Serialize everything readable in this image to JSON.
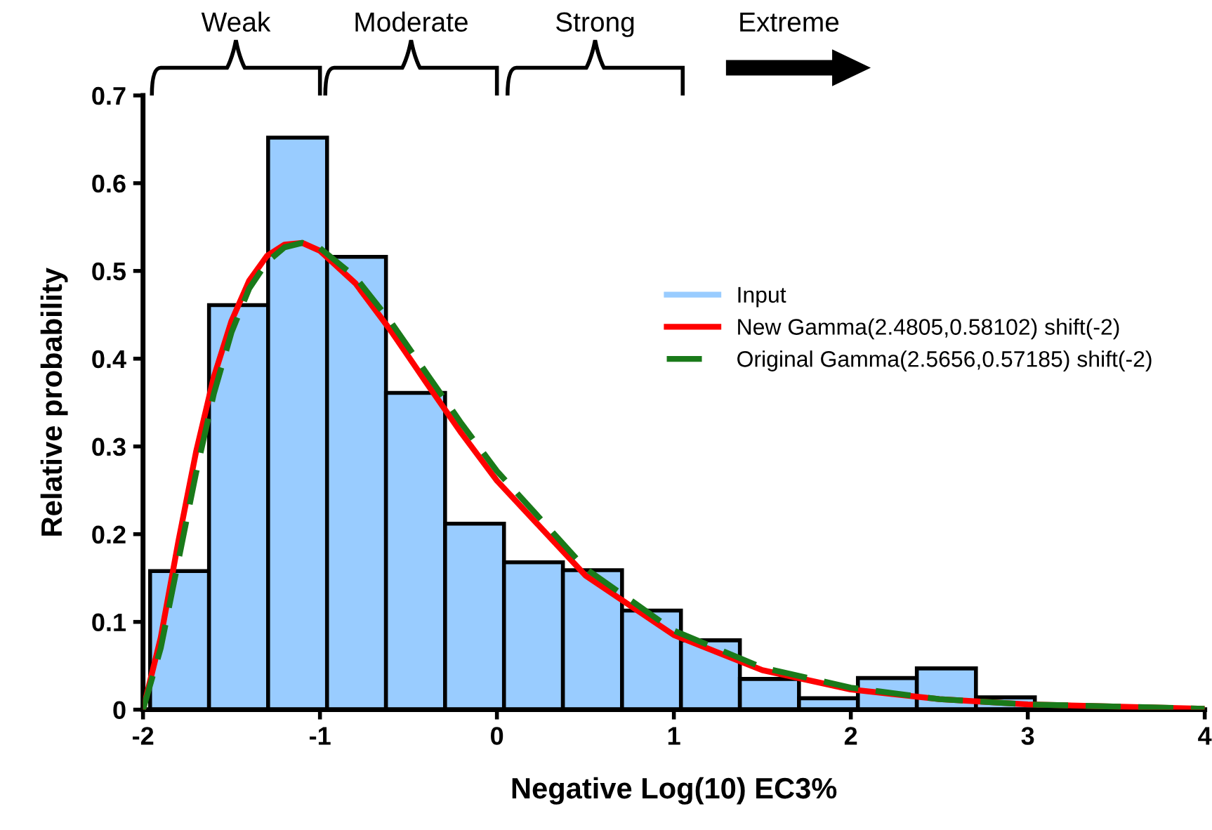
{
  "chart_data": {
    "type": "histogram",
    "xlabel": "Negative Log(10) EC3%",
    "ylabel": "Relative probability",
    "xlim": [
      -2,
      4
    ],
    "xticks": [
      -2,
      -1,
      0,
      1,
      2,
      3,
      4
    ],
    "ylim": [
      0,
      0.7
    ],
    "yticks": [
      0,
      0.1,
      0.2,
      0.3,
      0.4,
      0.5,
      0.6,
      0.7
    ],
    "grid": false,
    "legend": "right",
    "annotations": [
      "Weak",
      "Moderate",
      "Strong",
      "Extreme"
    ],
    "series": [
      {
        "name": "Input",
        "color": "#99ccff",
        "bins": [
          -1.96,
          -1.627,
          -1.293,
          -0.96,
          -0.627,
          -0.293,
          0.04,
          0.373,
          0.707,
          1.04,
          1.373,
          1.707,
          2.04,
          2.373,
          2.707,
          3.04
        ],
        "values": [
          0.158,
          0.461,
          0.652,
          0.516,
          0.361,
          0.212,
          0.168,
          0.159,
          0.113,
          0.079,
          0.035,
          0.013,
          0.036,
          0.047,
          0.014
        ]
      },
      {
        "type": "line",
        "name": "New Gamma(2.4805,0.58102) shift(-2)",
        "color": "#ff0000",
        "line_style": "solid",
        "x": [
          -2,
          -1.9,
          -1.8,
          -1.7,
          -1.6,
          -1.5,
          -1.4,
          -1.3,
          -1.2,
          -1.1,
          -1,
          -0.8,
          -0.6,
          -0.4,
          -0.2,
          0,
          0.5,
          1,
          1.5,
          2,
          2.5,
          3,
          4
        ],
        "values": [
          0,
          0.082,
          0.192,
          0.294,
          0.379,
          0.443,
          0.489,
          0.517,
          0.53,
          0.532,
          0.523,
          0.486,
          0.432,
          0.373,
          0.315,
          0.261,
          0.153,
          0.085,
          0.045,
          0.023,
          0.012,
          0.006,
          0.001
        ]
      },
      {
        "type": "line",
        "name": "Original Gamma(2.5656,0.57185) shift(-2)",
        "color": "#1a7a1a",
        "line_style": "dashed",
        "x": [
          -2,
          -1.9,
          -1.8,
          -1.7,
          -1.6,
          -1.5,
          -1.4,
          -1.3,
          -1.2,
          -1.1,
          -1,
          -0.8,
          -0.6,
          -0.4,
          -0.2,
          0,
          0.5,
          1,
          1.5,
          2,
          2.5,
          3,
          4
        ],
        "values": [
          0,
          0.07,
          0.17,
          0.27,
          0.36,
          0.43,
          0.48,
          0.51,
          0.527,
          0.532,
          0.526,
          0.493,
          0.442,
          0.384,
          0.326,
          0.272,
          0.161,
          0.09,
          0.048,
          0.025,
          0.012,
          0.006,
          0.001
        ]
      }
    ]
  }
}
